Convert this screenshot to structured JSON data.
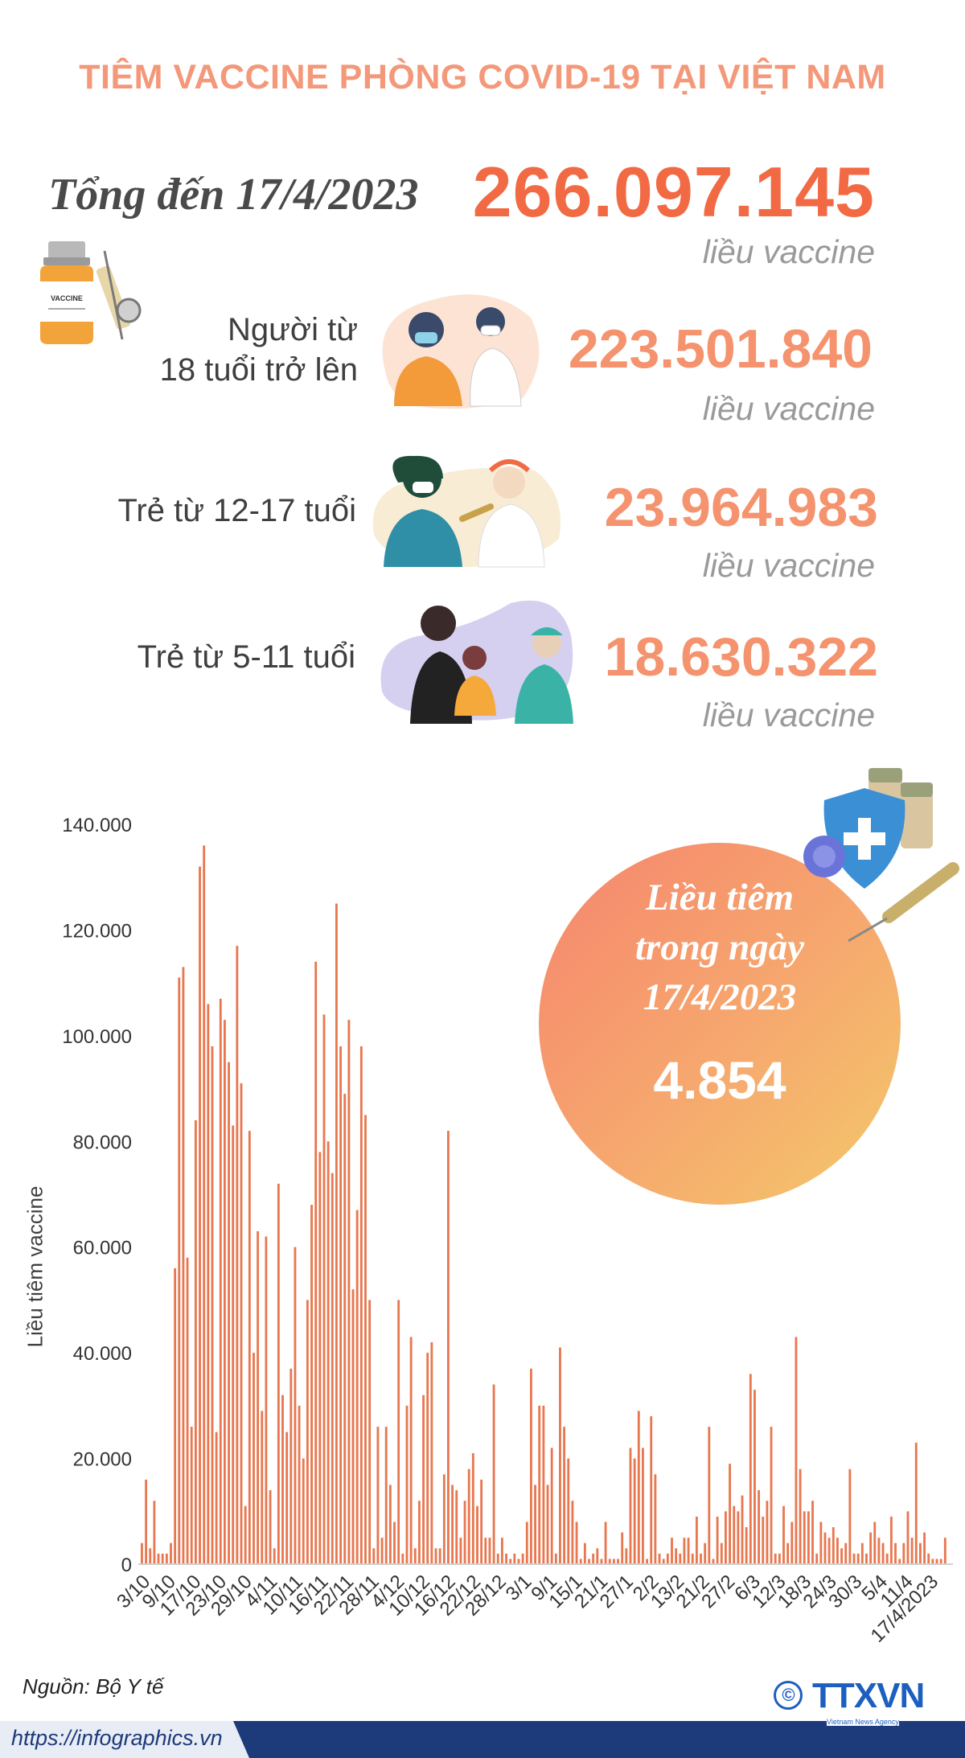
{
  "title": "TIÊM VACCINE PHÒNG COVID-19 TẠI VIỆT NAM",
  "total": {
    "label": "Tổng đến 17/4/2023",
    "value": "266.097.145",
    "unit": "liều vaccine"
  },
  "groups": [
    {
      "label_lines": [
        "Người từ",
        "18 tuổi trở lên"
      ],
      "value": "223.501.840",
      "unit": "liều vaccine"
    },
    {
      "label_lines": [
        "Trẻ từ 12-17 tuổi"
      ],
      "value": "23.964.983",
      "unit": "liều vaccine"
    },
    {
      "label_lines": [
        "Trẻ từ 5-11 tuổi"
      ],
      "value": "18.630.322",
      "unit": "liều vaccine"
    }
  ],
  "vial_label": "VACCINE",
  "highlight": {
    "label_lines": [
      "Liều tiêm",
      "trong ngày",
      "17/4/2023"
    ],
    "value": "4.854"
  },
  "chart_data": {
    "type": "bar",
    "ylabel": "Liều tiêm vaccine",
    "ylim": [
      0,
      140000
    ],
    "yticks": [
      0,
      20000,
      40000,
      60000,
      80000,
      100000,
      120000,
      140000
    ],
    "ytick_labels": [
      "0",
      "20.000",
      "40.000",
      "60.000",
      "80.000",
      "100.000",
      "120.000",
      "140.000"
    ],
    "tick_labels": [
      "3/10",
      "9/10",
      "17/10",
      "23/10",
      "29/10",
      "4/11",
      "10/11",
      "16/11",
      "22/11",
      "28/11",
      "4/12",
      "10/12",
      "16/12",
      "22/12",
      "28/12",
      "3/1",
      "9/1",
      "15/1",
      "21/1",
      "27/1",
      "2/2",
      "13/2",
      "21/2",
      "27/2",
      "6/3",
      "12/3",
      "18/3",
      "24/3",
      "30/3",
      "5/4",
      "11/4",
      "17/4/2023"
    ],
    "values": [
      4000,
      16000,
      3000,
      12000,
      2000,
      2000,
      2000,
      4000,
      56000,
      111000,
      113000,
      58000,
      26000,
      84000,
      132000,
      136000,
      106000,
      98000,
      25000,
      107000,
      103000,
      95000,
      83000,
      117000,
      91000,
      11000,
      82000,
      40000,
      63000,
      29000,
      62000,
      14000,
      3000,
      72000,
      32000,
      25000,
      37000,
      60000,
      30000,
      20000,
      50000,
      68000,
      114000,
      78000,
      104000,
      80000,
      74000,
      125000,
      98000,
      89000,
      103000,
      52000,
      67000,
      98000,
      85000,
      50000,
      3000,
      26000,
      5000,
      26000,
      15000,
      8000,
      50000,
      2000,
      30000,
      43000,
      3000,
      12000,
      32000,
      40000,
      42000,
      3000,
      3000,
      17000,
      82000,
      15000,
      14000,
      5000,
      12000,
      18000,
      21000,
      11000,
      16000,
      5000,
      5000,
      34000,
      2000,
      5000,
      2000,
      1000,
      2000,
      1000,
      2000,
      8000,
      37000,
      15000,
      30000,
      30000,
      15000,
      22000,
      2000,
      41000,
      26000,
      20000,
      12000,
      8000,
      1000,
      4000,
      1000,
      2000,
      3000,
      1000,
      8000,
      1000,
      1000,
      1000,
      6000,
      3000,
      22000,
      20000,
      29000,
      22000,
      1000,
      28000,
      17000,
      2000,
      1000,
      2000,
      5000,
      3000,
      2000,
      5000,
      5000,
      2000,
      9000,
      2000,
      4000,
      26000,
      1000,
      9000,
      4000,
      10000,
      19000,
      11000,
      10000,
      13000,
      7000,
      36000,
      33000,
      14000,
      9000,
      12000,
      26000,
      2000,
      2000,
      11000,
      4000,
      8000,
      43000,
      18000,
      10000,
      10000,
      12000,
      2000,
      8000,
      6000,
      5000,
      7000,
      5000,
      3000,
      4000,
      18000,
      2000,
      2000,
      4000,
      2000,
      6000,
      8000,
      5000,
      4000,
      2000,
      9000,
      4000,
      1000,
      4000,
      10000,
      5000,
      23000,
      4000,
      6000,
      2000,
      1000,
      1000,
      1000,
      5000
    ],
    "bar_color": "#e8774f",
    "grid": false
  },
  "source": "Nguồn: Bộ Y tế",
  "footer_url": "https://infographics.vn",
  "logo": {
    "mark": "©",
    "name": "TTXVN",
    "sub": "Vietnam News Agency"
  },
  "colors": {
    "title": "#f4987a",
    "total": "#f26a43",
    "group": "#f4936e",
    "bars": "#e8774f",
    "footer": "#1d3a7a"
  }
}
